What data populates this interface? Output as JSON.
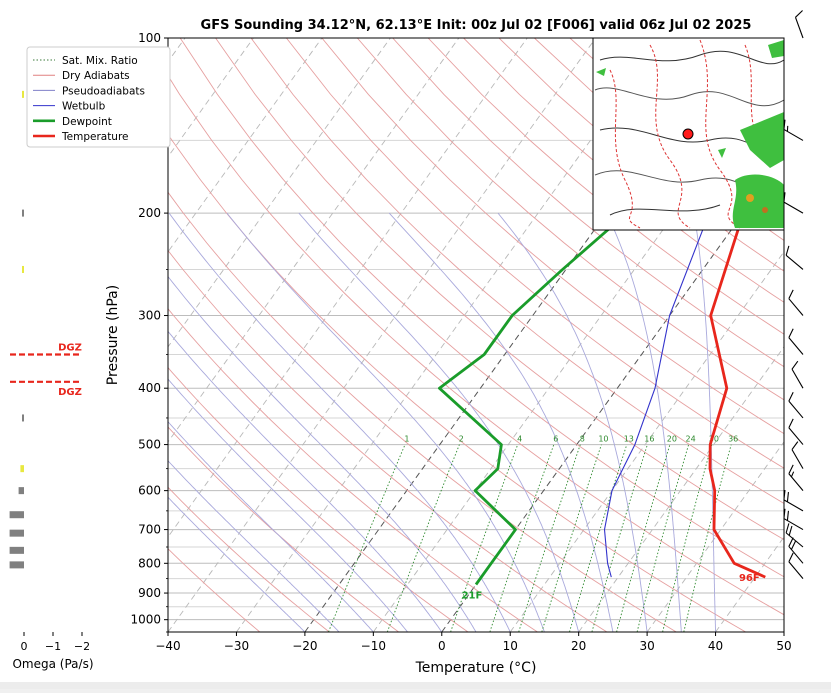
{
  "chart_data": {
    "type": "line",
    "subtype": "skew-t log-p sounding",
    "title": "GFS Sounding 34.12°N, 62.13°E Init: 00z Jul 02 [F006] valid 06z Jul 02 2025",
    "xlabel": "Temperature (°C)",
    "ylabel": "Pressure (hPa)",
    "xlim": [
      -40,
      50
    ],
    "ylim": [
      1050,
      100
    ],
    "yscale": "log",
    "grid": true,
    "legend_position": "top-left",
    "x_ticks": [
      "−40",
      "−30",
      "−20",
      "−10",
      "0",
      "10",
      "20",
      "30",
      "40",
      "50"
    ],
    "y_ticks": [
      "100",
      "200",
      "300",
      "400",
      "500",
      "600",
      "700",
      "800",
      "900",
      "1000"
    ],
    "legend": [
      {
        "label": "Sat. Mix. Ratio",
        "color": "#3a7a3a",
        "style": "dotted"
      },
      {
        "label": "Dry Adiabats",
        "color": "#e08080",
        "style": "solid"
      },
      {
        "label": "Pseudoadiabats",
        "color": "#8080c8",
        "style": "solid"
      },
      {
        "label": "Wetbulb",
        "color": "#3333cc",
        "style": "solid"
      },
      {
        "label": "Dewpoint",
        "color": "#1a9c2a",
        "style": "bold"
      },
      {
        "label": "Temperature",
        "color": "#e8261c",
        "style": "bold"
      }
    ],
    "series": [
      {
        "name": "Temperature",
        "color": "#e8261c",
        "points": [
          [
            41.5,
            845
          ],
          [
            35.5,
            800
          ],
          [
            29,
            700
          ],
          [
            25,
            600
          ],
          [
            22,
            550
          ],
          [
            19.5,
            500
          ],
          [
            16,
            400
          ],
          [
            6,
            300
          ],
          [
            0,
            200
          ],
          [
            -6.5,
            150
          ],
          [
            -10,
            100
          ]
        ]
      },
      {
        "name": "Dewpoint",
        "color": "#1a9c2a",
        "points": [
          [
            0,
            870
          ],
          [
            0,
            800
          ],
          [
            0,
            700
          ],
          [
            -10,
            600
          ],
          [
            -9,
            550
          ],
          [
            -11,
            500
          ],
          [
            -26,
            400
          ],
          [
            -23,
            350
          ],
          [
            -23,
            300
          ],
          [
            -20.5,
            250
          ],
          [
            -17,
            200
          ],
          [
            -14.5,
            150
          ],
          [
            -17,
            100
          ]
        ]
      },
      {
        "name": "Wetbulb",
        "color": "#3333cc",
        "points": [
          [
            19,
            845
          ],
          [
            17,
            800
          ],
          [
            13,
            700
          ],
          [
            10,
            600
          ],
          [
            8.5,
            500
          ],
          [
            5.5,
            400
          ],
          [
            0,
            300
          ],
          [
            -5,
            200
          ],
          [
            -6.5,
            150
          ]
        ]
      }
    ],
    "mixing_ratio_labels": [
      "1",
      "2",
      "4",
      "6",
      "8",
      "10",
      "13",
      "16",
      "20",
      "24",
      "30",
      "36"
    ],
    "surface_labels": {
      "dewpoint": "21F",
      "temperature": "96F"
    },
    "omega_panel": {
      "xlabel": "Omega (Pa/s)",
      "ticks": [
        "0",
        "−1",
        "−2"
      ],
      "dgz_label": "DGZ",
      "dgz_pressures": [
        350,
        390
      ],
      "bars": [
        {
          "p": 125,
          "omega": 0.05,
          "color": "#e8e840"
        },
        {
          "p": 200,
          "omega": 0.1,
          "color": "#808080"
        },
        {
          "p": 250,
          "omega": 0.05,
          "color": "#e8e840"
        },
        {
          "p": 450,
          "omega": 0.1,
          "color": "#808080"
        },
        {
          "p": 550,
          "omega": 0.2,
          "color": "#e8e840"
        },
        {
          "p": 600,
          "omega": 0.3,
          "color": "#808080"
        },
        {
          "p": 660,
          "omega": 0.8,
          "color": "#808080"
        },
        {
          "p": 710,
          "omega": 0.8,
          "color": "#808080"
        },
        {
          "p": 760,
          "omega": 0.8,
          "color": "#808080"
        },
        {
          "p": 805,
          "omega": 0.8,
          "color": "#808080"
        }
      ]
    },
    "wind_barbs": [
      {
        "p": 100,
        "dir": 340,
        "kt": 10
      },
      {
        "p": 150,
        "dir": 300,
        "kt": 15
      },
      {
        "p": 200,
        "dir": 300,
        "kt": 10
      },
      {
        "p": 250,
        "dir": 310,
        "kt": 10
      },
      {
        "p": 300,
        "dir": 320,
        "kt": 10
      },
      {
        "p": 350,
        "dir": 320,
        "kt": 10
      },
      {
        "p": 400,
        "dir": 330,
        "kt": 10
      },
      {
        "p": 450,
        "dir": 320,
        "kt": 10
      },
      {
        "p": 500,
        "dir": 320,
        "kt": 10
      },
      {
        "p": 550,
        "dir": 330,
        "kt": 10
      },
      {
        "p": 600,
        "dir": 320,
        "kt": 15
      },
      {
        "p": 650,
        "dir": 300,
        "kt": 20
      },
      {
        "p": 700,
        "dir": 300,
        "kt": 20
      },
      {
        "p": 750,
        "dir": 310,
        "kt": 20
      },
      {
        "p": 800,
        "dir": 320,
        "kt": 20
      },
      {
        "p": 850,
        "dir": 320,
        "kt": 10
      }
    ]
  }
}
